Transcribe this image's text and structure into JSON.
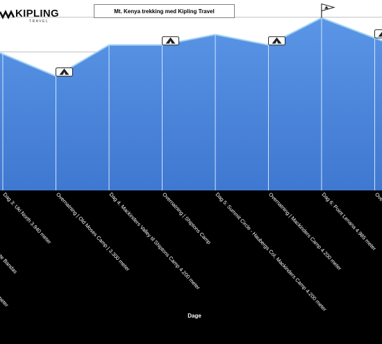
{
  "logo": {
    "brand": "KIPLING",
    "tagline": "TRAVEL"
  },
  "chart_data": {
    "type": "area",
    "title": "Mt. Kenya trekking med Kipling Travel",
    "xlabel": "Dage",
    "ylabel": "",
    "categories": [
      "Dag 3: Uki North 3.940 meter",
      "Overnatning | Old Moses Camp | 3.300 meter",
      "Dag 4. Mackinders Valley til Shiptons Camp 4.200 meter",
      "Overnatning | Shiptons Camp",
      "Dag 5: Summit Circle - Haubergs Col, Mackinders Camp 4.200 meter",
      "Overnatning | Mackinders Camp 4.200 meter",
      "Dag 6: Point Lenana 4.985 meter",
      "Ove"
    ],
    "clipped_labels": [
      "rk Gate Bandas",
      "meter"
    ],
    "values": [
      3940,
      3300,
      4200,
      4200,
      4500,
      4200,
      4985,
      4400
    ],
    "ylim": [
      0,
      5500
    ],
    "gridlines": [
      5000,
      4000
    ],
    "grid": true,
    "legend": "none",
    "markers": [
      {
        "category_index": 1,
        "icon": "tent-icon"
      },
      {
        "category_index": 3,
        "icon": "tent-icon"
      },
      {
        "category_index": 5,
        "icon": "tent-icon"
      },
      {
        "category_index": 6,
        "icon": "summit-flag-icon"
      },
      {
        "category_index": 7,
        "icon": "tent-icon"
      }
    ],
    "colors": {
      "fill": "#3f78d0",
      "fill_light": "#5a95e6",
      "line": "#9fd0f5",
      "plot_bg": "#ffffff",
      "label": "#ffffff",
      "background": "#000000"
    }
  }
}
